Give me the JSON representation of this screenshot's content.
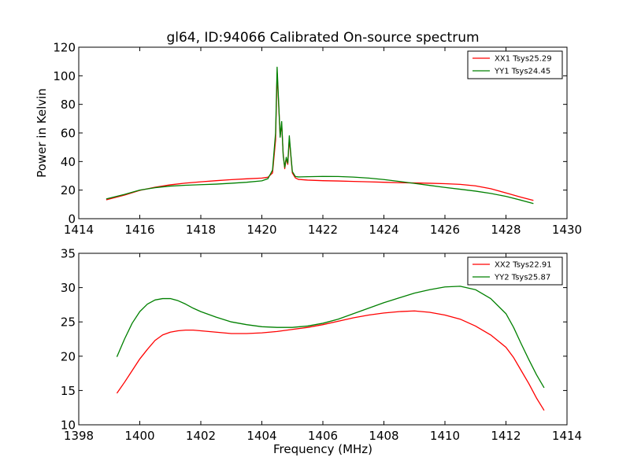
{
  "chart_data": [
    {
      "type": "line",
      "title": "gl64, ID:94066 Calibrated On-source spectrum",
      "xlabel": "",
      "ylabel": "Power in Kelvin",
      "xlim": [
        1414,
        1430
      ],
      "ylim": [
        0,
        120
      ],
      "xticks": [
        "1414",
        "1416",
        "1418",
        "1420",
        "1422",
        "1424",
        "1426",
        "1428",
        "1430"
      ],
      "yticks": [
        "0",
        "20",
        "40",
        "60",
        "80",
        "100",
        "120"
      ],
      "legend_position": "top-right",
      "series": [
        {
          "name": "XX1 Tsys25.29",
          "color": "#ff0000",
          "x": [
            1414.9,
            1415.5,
            1416,
            1416.5,
            1417,
            1417.5,
            1418,
            1418.5,
            1419,
            1419.5,
            1420,
            1420.2,
            1420.35,
            1420.45,
            1420.5,
            1420.55,
            1420.6,
            1420.65,
            1420.7,
            1420.75,
            1420.8,
            1420.85,
            1420.9,
            1420.95,
            1421.0,
            1421.1,
            1421.2,
            1421.5,
            1422,
            1422.5,
            1423,
            1423.5,
            1424,
            1424.5,
            1425,
            1425.5,
            1426,
            1426.5,
            1427,
            1427.5,
            1428,
            1428.5,
            1428.9
          ],
          "y": [
            13.2,
            16.5,
            19.8,
            22,
            23.7,
            24.9,
            25.8,
            26.6,
            27.3,
            27.9,
            28.4,
            29,
            32,
            55,
            102,
            80,
            58,
            66,
            45,
            35,
            42,
            38,
            56,
            44,
            32,
            28.5,
            27.5,
            27,
            26.6,
            26.4,
            26.1,
            25.8,
            25.5,
            25.2,
            25,
            24.8,
            24.5,
            24,
            23,
            21,
            18,
            15,
            12.8
          ]
        },
        {
          "name": "YY1 Tsys24.45",
          "color": "#008000",
          "x": [
            1414.9,
            1415.5,
            1416,
            1416.5,
            1417,
            1417.5,
            1418,
            1418.5,
            1419,
            1419.5,
            1420,
            1420.2,
            1420.35,
            1420.45,
            1420.5,
            1420.55,
            1420.6,
            1420.65,
            1420.7,
            1420.75,
            1420.8,
            1420.85,
            1420.9,
            1420.95,
            1421.0,
            1421.1,
            1421.2,
            1421.5,
            1422,
            1422.5,
            1423,
            1423.5,
            1424,
            1424.5,
            1425,
            1425.5,
            1426,
            1426.5,
            1427,
            1427.5,
            1428,
            1428.5,
            1428.9
          ],
          "y": [
            13.8,
            17,
            20,
            21.7,
            22.8,
            23.4,
            23.8,
            24.2,
            24.8,
            25.5,
            26.5,
            28,
            34,
            60,
            106,
            82,
            57,
            68,
            44,
            36,
            43,
            39,
            58,
            45,
            33,
            29.5,
            29.2,
            29.4,
            29.6,
            29.5,
            29.1,
            28.4,
            27.4,
            26.1,
            24.7,
            23.3,
            21.9,
            20.6,
            19.3,
            17.7,
            15.6,
            12.9,
            10.6
          ]
        }
      ]
    },
    {
      "type": "line",
      "title": "",
      "xlabel": "Frequency (MHz)",
      "ylabel": "",
      "xlim": [
        1398,
        1414
      ],
      "ylim": [
        10,
        35
      ],
      "xticks": [
        "1398",
        "1400",
        "1402",
        "1404",
        "1406",
        "1408",
        "1410",
        "1412",
        "1414"
      ],
      "yticks": [
        "10",
        "15",
        "20",
        "25",
        "30",
        "35"
      ],
      "legend_position": "top-right",
      "series": [
        {
          "name": "XX2 Tsys22.91",
          "color": "#ff0000",
          "x": [
            1399.25,
            1399.5,
            1399.75,
            1400,
            1400.25,
            1400.5,
            1400.75,
            1401,
            1401.25,
            1401.5,
            1401.75,
            1402,
            1402.5,
            1403,
            1403.5,
            1404,
            1404.5,
            1405,
            1405.5,
            1406,
            1406.5,
            1407,
            1407.5,
            1408,
            1408.5,
            1409,
            1409.5,
            1410,
            1410.5,
            1411,
            1411.5,
            1412,
            1412.25,
            1412.5,
            1412.75,
            1413,
            1413.25
          ],
          "y": [
            14.6,
            16.2,
            17.9,
            19.6,
            21,
            22.3,
            23.1,
            23.5,
            23.7,
            23.8,
            23.8,
            23.7,
            23.5,
            23.3,
            23.3,
            23.4,
            23.6,
            23.9,
            24.2,
            24.6,
            25.1,
            25.6,
            26,
            26.3,
            26.5,
            26.6,
            26.4,
            26,
            25.4,
            24.4,
            23.1,
            21.3,
            19.8,
            17.9,
            16,
            13.9,
            12.1
          ]
        },
        {
          "name": "YY2 Tsys25.87",
          "color": "#008000",
          "x": [
            1399.25,
            1399.5,
            1399.75,
            1400,
            1400.25,
            1400.5,
            1400.75,
            1401,
            1401.25,
            1401.5,
            1401.75,
            1402,
            1402.5,
            1403,
            1403.5,
            1404,
            1404.5,
            1405,
            1405.5,
            1406,
            1406.5,
            1407,
            1407.5,
            1408,
            1408.5,
            1409,
            1409.5,
            1410,
            1410.5,
            1411,
            1411.5,
            1412,
            1412.25,
            1412.5,
            1412.75,
            1413,
            1413.25
          ],
          "y": [
            19.9,
            22.5,
            24.8,
            26.5,
            27.6,
            28.2,
            28.4,
            28.4,
            28.1,
            27.6,
            27,
            26.5,
            25.7,
            25,
            24.6,
            24.3,
            24.2,
            24.2,
            24.4,
            24.8,
            25.4,
            26.2,
            27,
            27.8,
            28.5,
            29.2,
            29.7,
            30.1,
            30.2,
            29.7,
            28.4,
            26.2,
            24.2,
            21.8,
            19.5,
            17.3,
            15.4
          ]
        }
      ]
    }
  ]
}
